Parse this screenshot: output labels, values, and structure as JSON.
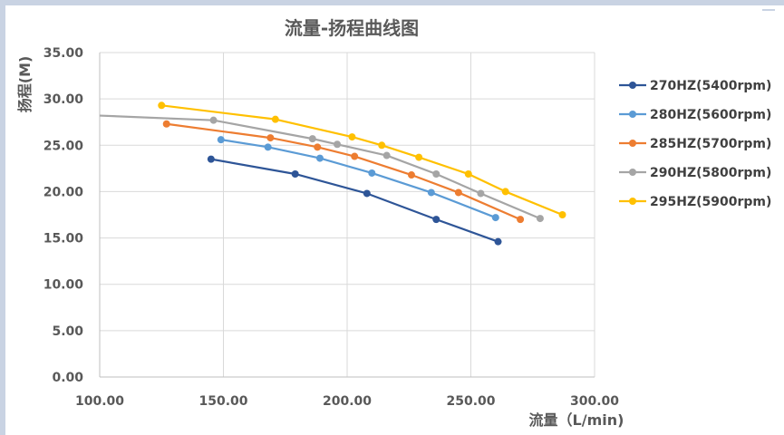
{
  "chart_data": {
    "type": "line",
    "title": "流量-扬程曲线图",
    "xlabel": "流量（L/min)",
    "ylabel": "扬程(M)",
    "xlim": [
      100,
      300
    ],
    "ylim": [
      0,
      35
    ],
    "x_ticks": [
      "100.00",
      "150.00",
      "200.00",
      "250.00",
      "300.00"
    ],
    "y_ticks": [
      "0.00",
      "5.00",
      "10.00",
      "15.00",
      "20.00",
      "25.00",
      "30.00",
      "35.00"
    ],
    "grid": "vertical-and-horizontal",
    "legend_position": "right",
    "series": [
      {
        "name": "270HZ(5400rpm)",
        "color": "#2e5597",
        "points": [
          [
            145,
            23.5
          ],
          [
            179,
            21.9
          ],
          [
            208,
            19.8
          ],
          [
            236,
            17.0
          ],
          [
            261,
            14.6
          ]
        ]
      },
      {
        "name": "280HZ(5600rpm)",
        "color": "#5b9bd5",
        "points": [
          [
            149,
            25.6
          ],
          [
            168,
            24.8
          ],
          [
            189,
            23.6
          ],
          [
            210,
            22.0
          ],
          [
            234,
            19.9
          ],
          [
            260,
            17.2
          ]
        ]
      },
      {
        "name": "285HZ(5700rpm)",
        "color": "#ed7d31",
        "points": [
          [
            127,
            27.3
          ],
          [
            169,
            25.8
          ],
          [
            188,
            24.8
          ],
          [
            203,
            23.8
          ],
          [
            226,
            21.8
          ],
          [
            245,
            19.9
          ],
          [
            270,
            17.0
          ]
        ]
      },
      {
        "name": "290HZ(5800rpm)",
        "color": "#a5a5a5",
        "points": [
          [
            100,
            28.2
          ],
          [
            146,
            27.7
          ],
          [
            186,
            25.7
          ],
          [
            196,
            25.1
          ],
          [
            216,
            23.9
          ],
          [
            236,
            21.9
          ],
          [
            254,
            19.8
          ],
          [
            278,
            17.1
          ]
        ]
      },
      {
        "name": "295HZ(5900rpm)",
        "color": "#ffc000",
        "points": [
          [
            125,
            29.3
          ],
          [
            171,
            27.8
          ],
          [
            202,
            25.9
          ],
          [
            214,
            25.0
          ],
          [
            229,
            23.7
          ],
          [
            249,
            21.9
          ],
          [
            264,
            20.0
          ],
          [
            287,
            17.5
          ]
        ]
      }
    ]
  }
}
